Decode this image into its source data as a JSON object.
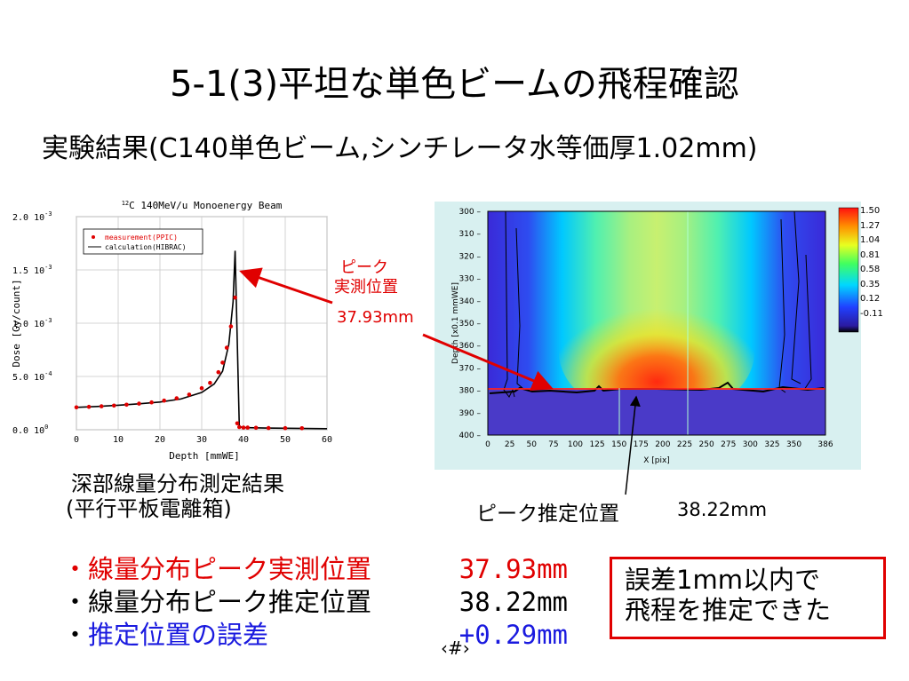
{
  "slide": {
    "title": "5-1(3)平坦な単色ビームの飛程確認",
    "subtitle": "実験結果(C140単色ビーム,シンチレータ水等価厚1.02mm)",
    "slide_number": "‹#›"
  },
  "left_chart": {
    "title_sup": "12",
    "title": "C 140MeV/u Monoenergy Beam",
    "ylabel": "Dose [Gy/count]",
    "xlabel": "Depth [mmWE]",
    "x_ticks": [
      "0",
      "10",
      "20",
      "30",
      "40",
      "50",
      "60"
    ],
    "y_ticks": [
      "0.0 10^0",
      "5.0 10^-4",
      "1.0 10^-3",
      "1.5 10^-3",
      "2.0 10^-3"
    ],
    "legend": [
      "measurement(PPIC)",
      "calculation(HIBRAC)"
    ],
    "caption_line1": "深部線量分布測定結果",
    "caption_line2": "(平行平板電離箱)"
  },
  "chart_data": {
    "type": "scatter",
    "title": "12C 140MeV/u Monoenergy Beam",
    "xlabel": "Depth [mmWE]",
    "ylabel": "Dose [Gy/count]",
    "xlim": [
      0,
      60
    ],
    "ylim": [
      0,
      0.002
    ],
    "series": [
      {
        "name": "measurement(PPIC)",
        "style": "points",
        "color": "#e00000",
        "x": [
          0,
          3,
          6,
          9,
          12,
          15,
          18,
          21,
          24,
          27,
          30,
          32,
          34,
          35,
          36,
          37,
          38,
          38.5,
          39,
          40,
          41,
          43,
          46,
          50,
          54
        ],
        "y": [
          0.00021,
          0.000215,
          0.00022,
          0.000227,
          0.000235,
          0.000245,
          0.000257,
          0.000273,
          0.000295,
          0.00033,
          0.00039,
          0.00044,
          0.00054,
          0.00063,
          0.00077,
          0.00097,
          0.00124,
          6e-05,
          2.5e-05,
          2e-05,
          2e-05,
          1.8e-05,
          1.6e-05,
          1.5e-05,
          1.4e-05
        ]
      },
      {
        "name": "calculation(HIBRAC)",
        "style": "line",
        "color": "#000000",
        "x": [
          0,
          5,
          10,
          15,
          20,
          25,
          30,
          33,
          35,
          36.5,
          37.5,
          38,
          39,
          40,
          45,
          50,
          55,
          60
        ],
        "y": [
          0.00021,
          0.000218,
          0.00023,
          0.000243,
          0.00026,
          0.000288,
          0.00035,
          0.00043,
          0.00055,
          0.0008,
          0.0012,
          0.00168,
          3e-05,
          2e-05,
          1.6e-05,
          1.4e-05,
          1.2e-05,
          1e-05
        ]
      }
    ]
  },
  "right_chart": {
    "ylabel": "Depth [x0.1 mmWE]",
    "xlabel": "X [pix]",
    "x_ticks": [
      "0",
      "25",
      "50",
      "75",
      "100",
      "125",
      "150",
      "175",
      "200",
      "225",
      "250",
      "275",
      "300",
      "325",
      "350",
      "386"
    ],
    "y_ticks": [
      "300",
      "310",
      "320",
      "330",
      "340",
      "350",
      "360",
      "370",
      "380",
      "390",
      "400"
    ],
    "colorbar_ticks": [
      "1.50",
      "1.27",
      "1.04",
      "0.81",
      "0.58",
      "0.35",
      "0.12",
      "-0.11"
    ]
  },
  "annotations": {
    "peak_measured_line1": "ピーク",
    "peak_measured_line2": "実測位置",
    "peak_measured_value": "37.93mm",
    "peak_estimated_label": "ピーク推定位置",
    "peak_estimated_value": "38.22mm"
  },
  "results": [
    {
      "bullet": "・",
      "label": "線量分布ピーク実測位置",
      "value": "37.93mm",
      "color": "red"
    },
    {
      "bullet": "・",
      "label": "線量分布ピーク推定位置",
      "value": "38.22mm",
      "color": "black"
    },
    {
      "bullet": "・",
      "label": "推定位置の誤差",
      "value": "+0.29mm",
      "color": "blue"
    }
  ],
  "conclusion": {
    "line1": "誤差1mm以内で",
    "line2": "飛程を推定できた"
  }
}
